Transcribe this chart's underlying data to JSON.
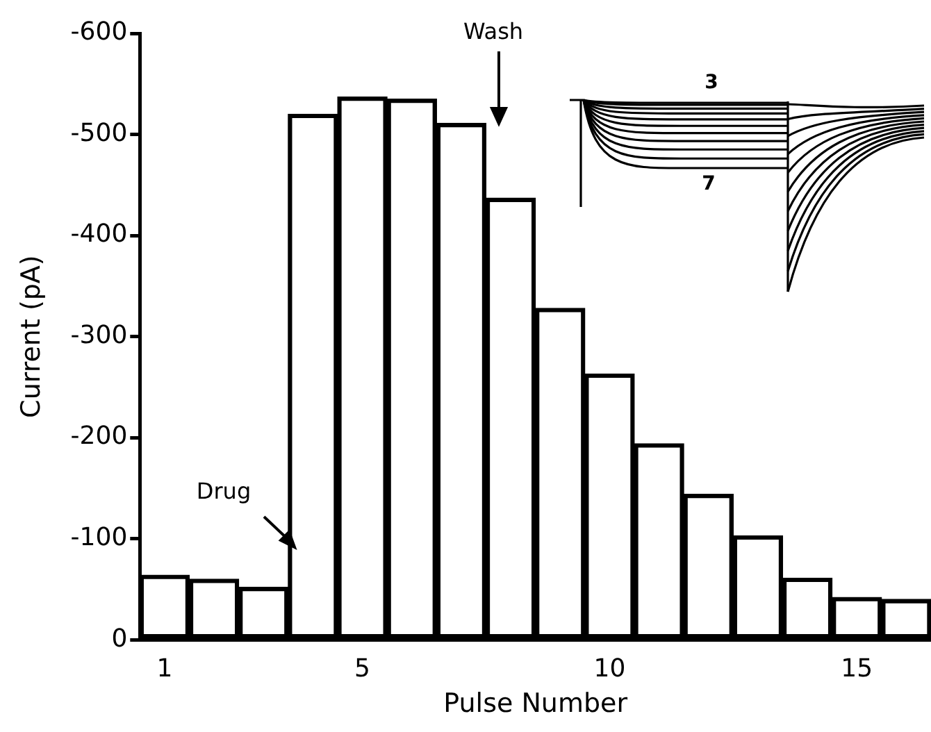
{
  "chart_data": {
    "type": "bar",
    "xlabel": "Pulse Number",
    "ylabel": "Current (pA)",
    "categories": [
      "1",
      null,
      null,
      null,
      "5",
      null,
      null,
      null,
      null,
      "10",
      null,
      null,
      null,
      null,
      "15",
      null
    ],
    "values": [
      -64,
      -60,
      -52,
      -520,
      -537,
      -535,
      -511,
      -437,
      -328,
      -263,
      -194,
      -144,
      -103,
      -61,
      -42,
      -40
    ],
    "color": "#000000",
    "ylim": [
      0,
      -600
    ],
    "yticks": [
      0,
      -100,
      -200,
      -300,
      -400,
      -500,
      -600
    ],
    "grid": false,
    "legend": false,
    "annotations": [
      "Drug",
      "Wash",
      "3",
      "7"
    ]
  }
}
